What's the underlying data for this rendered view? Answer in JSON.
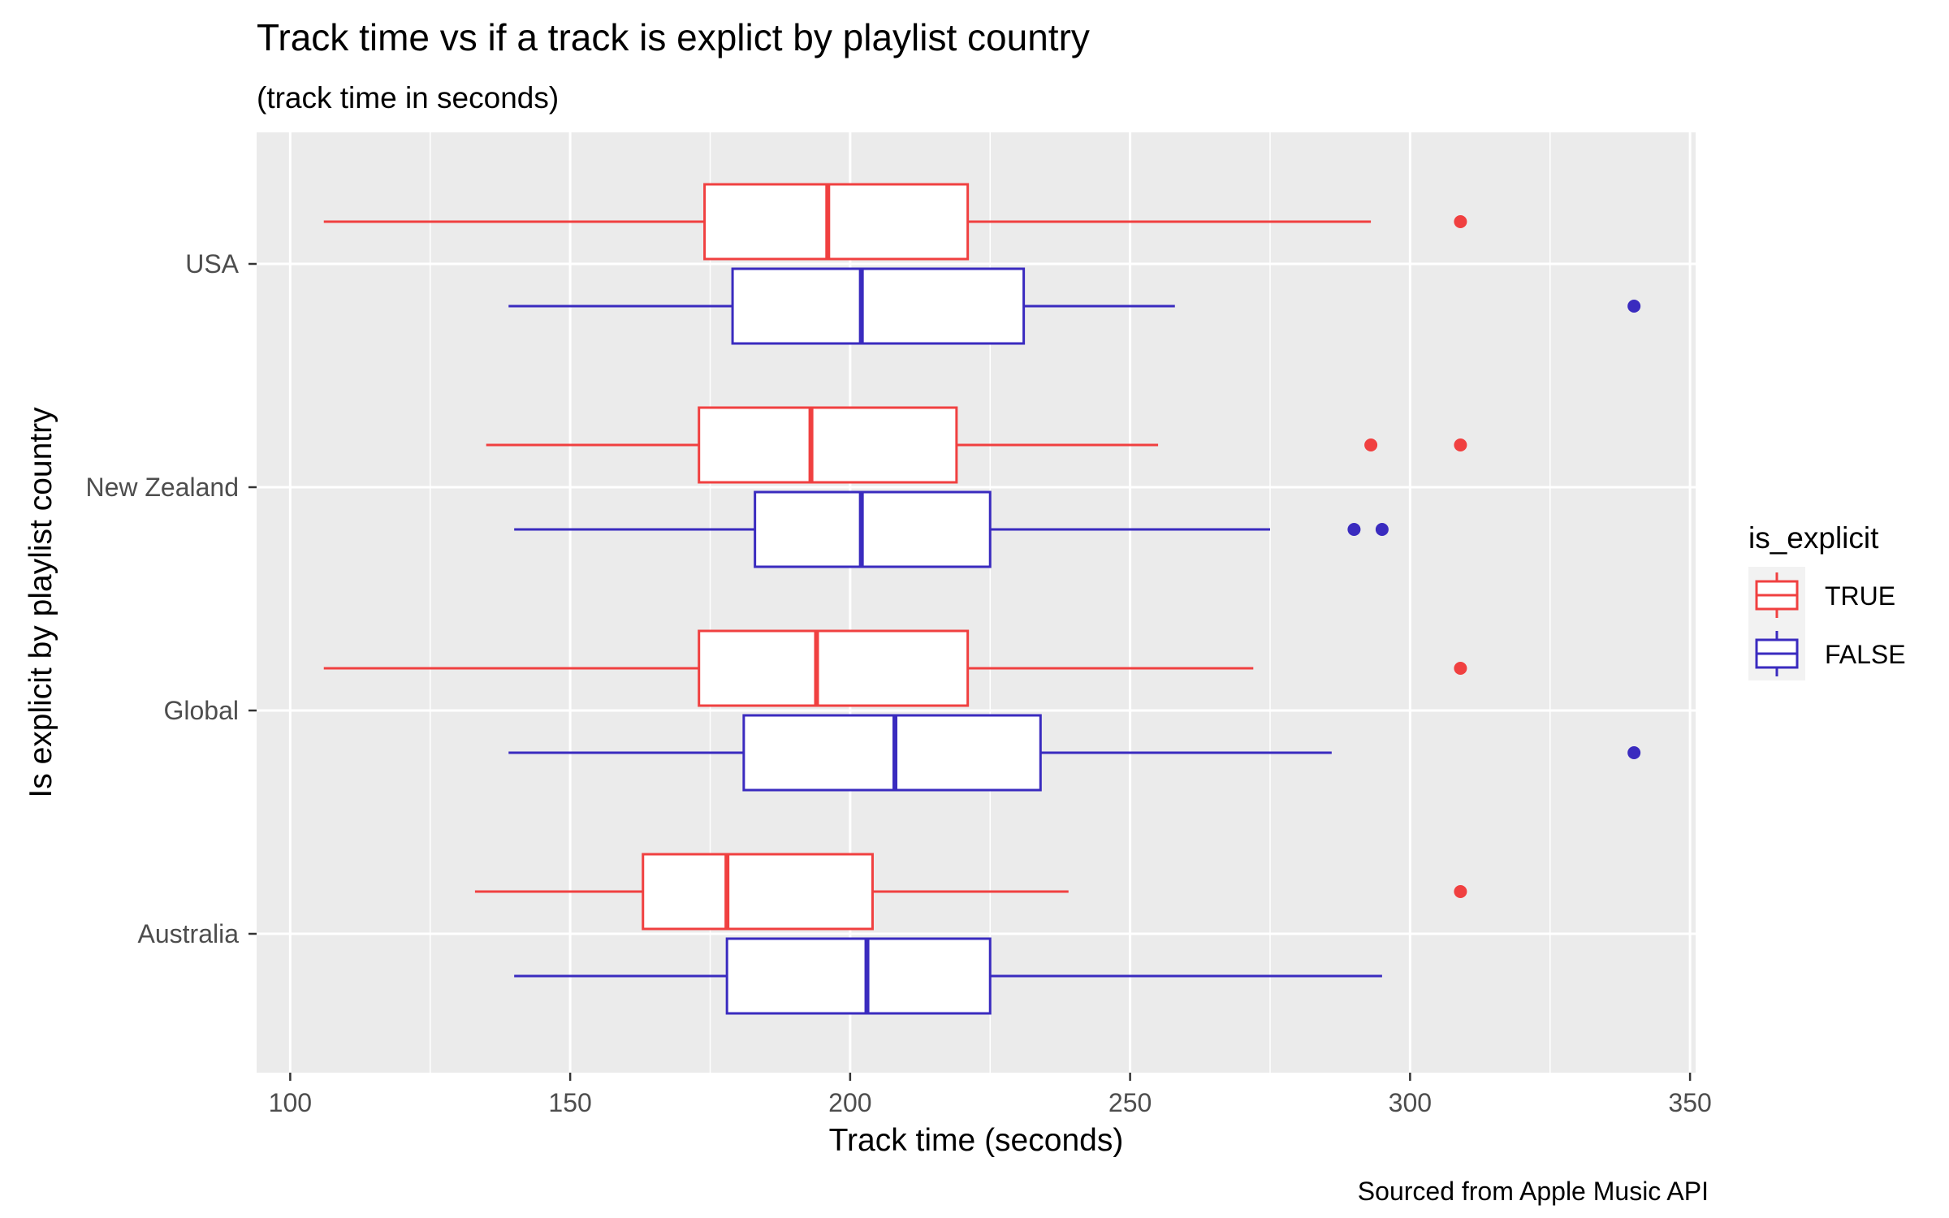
{
  "chart_data": {
    "type": "boxplot",
    "orientation": "horizontal",
    "title": "Track time vs if a track is explict by playlist country",
    "subtitle": "(track time in seconds)",
    "xlabel": "Track time (seconds)",
    "ylabel": "Is explicit by playlist country",
    "caption": "Sourced from Apple Music API",
    "xlim": [
      94,
      351
    ],
    "x_ticks": [
      100,
      150,
      200,
      250,
      300,
      350
    ],
    "x_tick_labels": [
      "100",
      "150",
      "200",
      "250",
      "300",
      "350"
    ],
    "categories": [
      "USA",
      "New Zealand",
      "Global",
      "Australia"
    ],
    "grid": true,
    "legend": {
      "title": "is_explicit",
      "position": "right",
      "entries": [
        {
          "label": "TRUE",
          "color": "#f04040"
        },
        {
          "label": "FALSE",
          "color": "#3a2bbf"
        }
      ]
    },
    "series": [
      {
        "name": "TRUE",
        "color": "#f04040",
        "boxes": [
          {
            "category": "USA",
            "whisker_low": 106,
            "q1": 174,
            "median": 196,
            "q3": 221,
            "whisker_high": 293,
            "outliers": [
              309
            ]
          },
          {
            "category": "New Zealand",
            "whisker_low": 135,
            "q1": 173,
            "median": 193,
            "q3": 219,
            "whisker_high": 255,
            "outliers": [
              293,
              309
            ]
          },
          {
            "category": "Global",
            "whisker_low": 106,
            "q1": 173,
            "median": 194,
            "q3": 221,
            "whisker_high": 272,
            "outliers": [
              309
            ]
          },
          {
            "category": "Australia",
            "whisker_low": 133,
            "q1": 163,
            "median": 178,
            "q3": 204,
            "whisker_high": 239,
            "outliers": [
              309
            ]
          }
        ]
      },
      {
        "name": "FALSE",
        "color": "#3a2bbf",
        "boxes": [
          {
            "category": "USA",
            "whisker_low": 139,
            "q1": 179,
            "median": 202,
            "q3": 231,
            "whisker_high": 258,
            "outliers": [
              340
            ]
          },
          {
            "category": "New Zealand",
            "whisker_low": 140,
            "q1": 183,
            "median": 202,
            "q3": 225,
            "whisker_high": 275,
            "outliers": [
              290,
              295
            ]
          },
          {
            "category": "Global",
            "whisker_low": 139,
            "q1": 181,
            "median": 208,
            "q3": 234,
            "whisker_high": 286,
            "outliers": [
              340
            ]
          },
          {
            "category": "Australia",
            "whisker_low": 140,
            "q1": 178,
            "median": 203,
            "q3": 225,
            "whisker_high": 295,
            "outliers": []
          }
        ]
      }
    ]
  }
}
